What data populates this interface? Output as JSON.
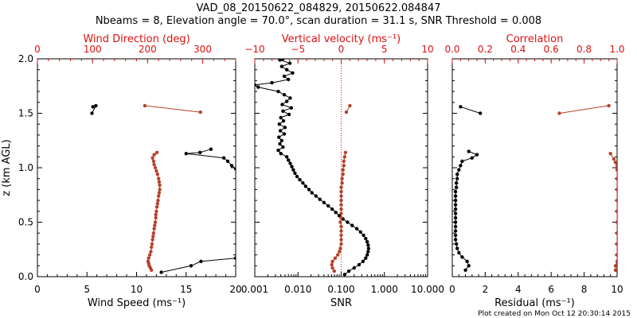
{
  "header": {
    "title_line1": "VAD_08_20150622_084829, 20150622.084847",
    "title_line2": "Nbeams = 8, Elevation angle = 70.0°, scan duration = 31.1 s, SNR Threshold = 0.008"
  },
  "footer": {
    "created": "Plot created on Mon Oct 12 20:30:14 2015"
  },
  "colors": {
    "black_series": "#000000",
    "red_series": "#b5412b",
    "red_axis": "#e01010"
  },
  "chart_data": [
    {
      "type": "scatter",
      "ylabel": "z (km AGL)",
      "ylim": [
        0,
        2.0
      ],
      "yticks": [
        "0.0",
        "0.5",
        "1.0",
        "1.5",
        "2.0"
      ],
      "xlabel": "Wind Speed (ms⁻¹)",
      "xlim": [
        0,
        20
      ],
      "xticks": [
        "0",
        "5",
        "10",
        "15",
        "20"
      ],
      "top_xlabel": "Wind Direction (deg)",
      "top_xlim": [
        0,
        360
      ],
      "top_xticks": [
        "0",
        "100",
        "200",
        "300"
      ],
      "series": [
        {
          "axis": "bottom",
          "color": "black",
          "line": true,
          "points": [
            [
              12.5,
              0.04
            ],
            [
              15.5,
              0.1
            ],
            [
              16.5,
              0.14
            ],
            [
              20,
              0.17
            ],
            null,
            [
              20,
              0.99
            ],
            [
              19.6,
              1.02
            ],
            [
              19.2,
              1.06
            ],
            [
              18.8,
              1.09
            ],
            [
              15,
              1.13
            ],
            [
              16.4,
              1.14
            ],
            [
              17.5,
              1.17
            ],
            null,
            [
              5.6,
              1.56
            ],
            [
              5.9,
              1.57
            ],
            [
              5.5,
              1.5
            ]
          ]
        },
        {
          "axis": "top",
          "color": "red",
          "line": true,
          "points": [
            [
              207,
              0.06
            ],
            [
              205,
              0.08
            ],
            [
              203,
              0.1
            ],
            [
              202,
              0.12
            ],
            [
              201,
              0.14
            ],
            [
              202,
              0.17
            ],
            [
              204,
              0.2
            ],
            [
              206,
              0.23
            ],
            [
              207,
              0.27
            ],
            [
              208,
              0.3
            ],
            [
              209,
              0.34
            ],
            [
              210,
              0.37
            ],
            [
              211,
              0.4
            ],
            [
              212,
              0.44
            ],
            [
              213,
              0.47
            ],
            [
              214,
              0.5
            ],
            [
              215,
              0.54
            ],
            [
              215,
              0.57
            ],
            [
              216,
              0.6
            ],
            [
              217,
              0.64
            ],
            [
              218,
              0.67
            ],
            [
              219,
              0.7
            ],
            [
              220,
              0.74
            ],
            [
              221,
              0.77
            ],
            [
              222,
              0.8
            ],
            [
              222,
              0.84
            ],
            [
              221,
              0.87
            ],
            [
              220,
              0.9
            ],
            [
              218,
              0.94
            ],
            [
              216,
              0.97
            ],
            [
              214,
              1.0
            ],
            [
              212,
              1.03
            ],
            [
              211,
              1.06
            ],
            [
              209,
              1.09
            ],
            [
              212,
              1.12
            ],
            [
              217,
              1.14
            ],
            null,
            [
              195,
              1.57
            ],
            [
              296,
              1.51
            ]
          ]
        }
      ]
    },
    {
      "type": "scatter",
      "xlabel": "SNR",
      "xscale": "log",
      "xlim": [
        0.001,
        10.0
      ],
      "xticks": [
        "0.001",
        "0.010",
        "0.100",
        "1.000",
        "10.000"
      ],
      "top_xlabel": "Vertical velocity (ms⁻¹)",
      "top_xlim": [
        -10,
        10
      ],
      "top_xticks": [
        "−10",
        "−5",
        "0",
        "5",
        "10"
      ],
      "reference_line": {
        "axis": "top",
        "value": 0,
        "style": "dotted"
      },
      "ylim": [
        0,
        2.0
      ],
      "series": [
        {
          "axis": "bottom",
          "color": "black",
          "line": true,
          "points": [
            [
              0.12,
              0.02
            ],
            [
              0.15,
              0.05
            ],
            [
              0.2,
              0.08
            ],
            [
              0.26,
              0.11
            ],
            [
              0.32,
              0.14
            ],
            [
              0.37,
              0.17
            ],
            [
              0.4,
              0.2
            ],
            [
              0.42,
              0.23
            ],
            [
              0.43,
              0.26
            ],
            [
              0.42,
              0.29
            ],
            [
              0.4,
              0.32
            ],
            [
              0.37,
              0.35
            ],
            [
              0.33,
              0.38
            ],
            [
              0.28,
              0.41
            ],
            [
              0.23,
              0.44
            ],
            [
              0.18,
              0.47
            ],
            [
              0.14,
              0.5
            ],
            [
              0.11,
              0.53
            ],
            [
              0.09,
              0.56
            ],
            [
              0.075,
              0.59
            ],
            [
              0.062,
              0.62
            ],
            [
              0.05,
              0.65
            ],
            [
              0.04,
              0.68
            ],
            [
              0.032,
              0.71
            ],
            [
              0.026,
              0.74
            ],
            [
              0.021,
              0.77
            ],
            [
              0.018,
              0.8
            ],
            [
              0.015,
              0.83
            ],
            [
              0.013,
              0.86
            ],
            [
              0.011,
              0.89
            ],
            [
              0.0095,
              0.92
            ],
            [
              0.0085,
              0.95
            ],
            [
              0.0078,
              0.98
            ],
            [
              0.0072,
              1.01
            ],
            [
              0.0066,
              1.04
            ],
            [
              0.006,
              1.07
            ],
            [
              0.0055,
              1.1
            ],
            [
              0.004,
              1.13
            ],
            [
              0.0035,
              1.16
            ],
            [
              0.0045,
              1.19
            ],
            [
              0.0038,
              1.22
            ],
            [
              0.0042,
              1.25
            ],
            [
              0.0036,
              1.28
            ],
            [
              0.0048,
              1.31
            ],
            [
              0.0039,
              1.34
            ],
            [
              0.005,
              1.37
            ],
            [
              0.0037,
              1.4
            ],
            [
              0.0046,
              1.43
            ],
            [
              0.004,
              1.46
            ],
            [
              0.0062,
              1.49
            ],
            [
              0.0045,
              1.52
            ],
            [
              0.007,
              1.55
            ],
            [
              0.0043,
              1.58
            ],
            [
              0.0055,
              1.61
            ],
            [
              0.0066,
              1.64
            ],
            [
              0.0048,
              1.67
            ],
            [
              0.0035,
              1.7
            ],
            [
              0.0012,
              1.74
            ],
            [
              0.001,
              1.76
            ],
            [
              0.0025,
              1.78
            ],
            [
              0.006,
              1.81
            ],
            [
              0.0048,
              1.84
            ],
            [
              0.0075,
              1.87
            ],
            [
              0.0055,
              1.9
            ],
            [
              0.0042,
              1.93
            ],
            [
              0.0065,
              1.96
            ],
            [
              0.0038,
              1.99
            ],
            [
              0.0045,
              2.0
            ]
          ]
        },
        {
          "axis": "top",
          "color": "red",
          "line": true,
          "points": [
            [
              -0.8,
              0.05
            ],
            [
              -1.0,
              0.08
            ],
            [
              -1.1,
              0.11
            ],
            [
              -1.0,
              0.14
            ],
            [
              -0.7,
              0.17
            ],
            [
              -0.4,
              0.2
            ],
            [
              -0.2,
              0.23
            ],
            [
              -0.1,
              0.26
            ],
            [
              0.0,
              0.3
            ],
            [
              0.0,
              0.34
            ],
            [
              0.0,
              0.38
            ],
            [
              0.0,
              0.42
            ],
            [
              0.0,
              0.46
            ],
            [
              -0.1,
              0.5
            ],
            [
              0.0,
              0.54
            ],
            [
              0.0,
              0.58
            ],
            [
              0.0,
              0.62
            ],
            [
              0.0,
              0.66
            ],
            [
              0.0,
              0.7
            ],
            [
              0.0,
              0.74
            ],
            [
              0.0,
              0.78
            ],
            [
              0.0,
              0.82
            ],
            [
              0.1,
              0.86
            ],
            [
              0.1,
              0.9
            ],
            [
              0.2,
              0.94
            ],
            [
              0.2,
              0.98
            ],
            [
              0.3,
              1.02
            ],
            [
              0.3,
              1.06
            ],
            [
              0.4,
              1.1
            ],
            [
              0.5,
              1.14
            ],
            null,
            [
              1.0,
              1.57
            ],
            [
              0.6,
              1.51
            ]
          ]
        }
      ]
    },
    {
      "type": "scatter",
      "xlabel": "Residual (ms⁻¹)",
      "xlim": [
        0,
        10
      ],
      "xticks": [
        "0",
        "2",
        "4",
        "6",
        "8",
        "10"
      ],
      "top_xlabel": "Correlation",
      "top_xlim": [
        0.0,
        1.0
      ],
      "top_xticks": [
        "0.0",
        "0.2",
        "0.4",
        "0.6",
        "0.8",
        "1.0"
      ],
      "ylim": [
        0,
        2.0
      ],
      "series": [
        {
          "axis": "bottom",
          "color": "black",
          "line": true,
          "points": [
            [
              0.8,
              0.06
            ],
            [
              1.0,
              0.1
            ],
            [
              0.9,
              0.14
            ],
            [
              0.6,
              0.18
            ],
            [
              0.4,
              0.22
            ],
            [
              0.3,
              0.26
            ],
            [
              0.25,
              0.3
            ],
            [
              0.2,
              0.34
            ],
            [
              0.2,
              0.38
            ],
            [
              0.2,
              0.42
            ],
            [
              0.2,
              0.46
            ],
            [
              0.2,
              0.5
            ],
            [
              0.2,
              0.54
            ],
            [
              0.2,
              0.58
            ],
            [
              0.2,
              0.62
            ],
            [
              0.2,
              0.66
            ],
            [
              0.2,
              0.7
            ],
            [
              0.2,
              0.74
            ],
            [
              0.2,
              0.78
            ],
            [
              0.25,
              0.82
            ],
            [
              0.25,
              0.86
            ],
            [
              0.3,
              0.9
            ],
            [
              0.3,
              0.94
            ],
            [
              0.4,
              0.98
            ],
            [
              0.5,
              1.02
            ],
            [
              0.6,
              1.06
            ],
            [
              1.2,
              1.09
            ],
            [
              1.5,
              1.12
            ],
            [
              1.0,
              1.15
            ],
            null,
            [
              0.5,
              1.56
            ],
            [
              1.7,
              1.5
            ]
          ]
        },
        {
          "axis": "top",
          "color": "red",
          "line": true,
          "points": [
            [
              0.99,
              0.06
            ],
            [
              0.99,
              0.1
            ],
            [
              1.0,
              0.14
            ],
            [
              1.0,
              0.2
            ],
            [
              1.0,
              0.3
            ],
            [
              1.0,
              0.4
            ],
            [
              1.0,
              0.5
            ],
            [
              1.0,
              0.6
            ],
            [
              1.0,
              0.7
            ],
            [
              1.0,
              0.8
            ],
            [
              1.0,
              0.9
            ],
            [
              1.0,
              0.98
            ],
            [
              1.0,
              1.02
            ],
            [
              0.99,
              1.05
            ],
            [
              0.98,
              1.08
            ],
            [
              0.96,
              1.13
            ],
            null,
            [
              0.95,
              1.57
            ],
            [
              0.65,
              1.5
            ]
          ]
        }
      ]
    }
  ]
}
